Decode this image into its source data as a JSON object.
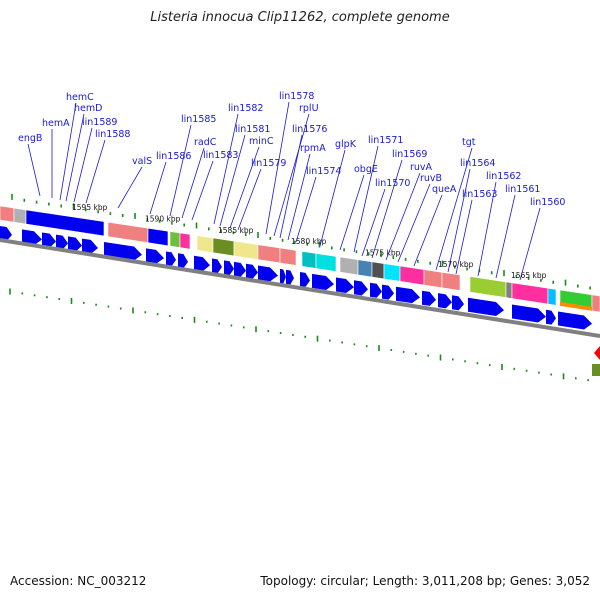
{
  "title": "Listeria innocua Clip11262, complete genome",
  "footer": {
    "accession": "Accession: NC_003212",
    "topology": "Topology: circular; Length: 3,011,208 bp; Genes: 3,052"
  },
  "colors": {
    "gene_label": "#1a1ad6",
    "forward_arrow": "#0000ee",
    "backbone": "#808080",
    "tick": "#1a8a1a"
  },
  "scale_labels": [
    "1595 kbp",
    "1590 kbp",
    "1585 kbp",
    "1580 kbp",
    "1575 kbp",
    "1570 kbp",
    "1565 kbp"
  ],
  "gene_labels": [
    "engB",
    "hemA",
    "hemC",
    "hemD",
    "lin1589",
    "lin1588",
    "valS",
    "lin1586",
    "lin1585",
    "radC",
    "lin1583",
    "lin1582",
    "lin1581",
    "minC",
    "lin1579",
    "lin1578",
    "rplU",
    "lin1576",
    "rpmA",
    "lin1574",
    "glpK",
    "obgE",
    "lin1571",
    "lin1570",
    "lin1569",
    "ruvA",
    "ruvB",
    "queA",
    "tgt",
    "lin1564",
    "lin1563",
    "lin1562",
    "lin1561",
    "lin1560"
  ]
}
